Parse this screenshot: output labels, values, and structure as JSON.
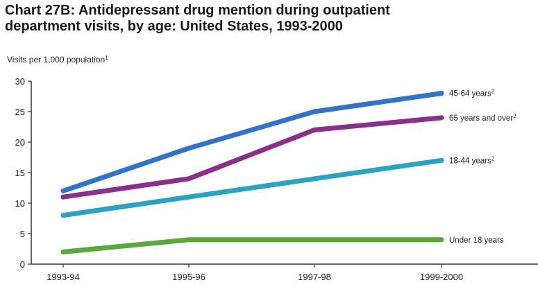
{
  "chart_data": {
    "type": "line",
    "title": "Chart 27B: Antidepressant drug mention during outpatient",
    "title_line2": "department visits, by age:  United States, 1993-2000",
    "ylabel": "Visits per 1,000 population",
    "ylabel_note": "1",
    "categories": [
      "1993-94",
      "1995-96",
      "1997-98",
      "1999-2000"
    ],
    "y_ticks": [
      "0",
      "5",
      "10",
      "15",
      "20",
      "25",
      "30"
    ],
    "ylim": [
      0,
      30
    ],
    "grid": false,
    "series": [
      {
        "name": "45-64 years",
        "note": "2",
        "color": "#2f74c9",
        "values": [
          12,
          19,
          25,
          28
        ]
      },
      {
        "name": "65 years and over",
        "note": "2",
        "color": "#8a2f8c",
        "values": [
          11,
          14,
          22,
          24
        ]
      },
      {
        "name": "18-44 years",
        "note": "2",
        "color": "#2aa3c3",
        "values": [
          8,
          11,
          14,
          17
        ]
      },
      {
        "name": "Under 18 years",
        "note": "",
        "color": "#5aa83a",
        "values": [
          2,
          4,
          4,
          4
        ]
      }
    ]
  }
}
